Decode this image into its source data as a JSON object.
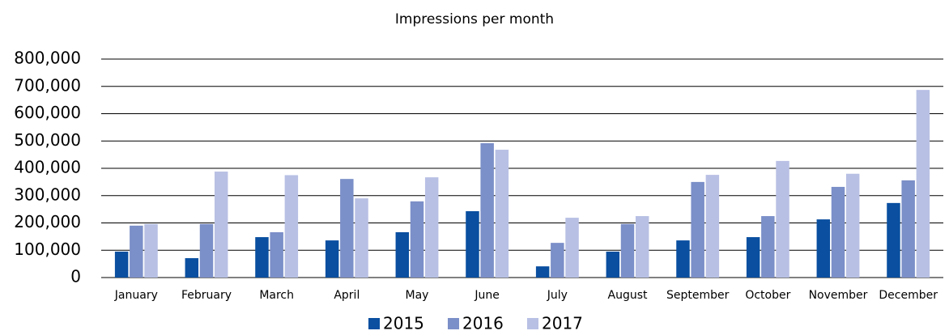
{
  "chart_data": {
    "type": "bar",
    "title": "Impressions per month",
    "categories": [
      "January",
      "February",
      "March",
      "April",
      "May",
      "June",
      "July",
      "August",
      "September",
      "October",
      "November",
      "December"
    ],
    "series": [
      {
        "name": "2015",
        "color": "#0a4fa0",
        "values": [
          95000,
          71000,
          148000,
          136000,
          166000,
          243000,
          41000,
          95000,
          136000,
          148000,
          213000,
          273000
        ]
      },
      {
        "name": "2016",
        "color": "#7b8fc8",
        "values": [
          190000,
          196000,
          166000,
          361000,
          279000,
          492000,
          127000,
          196000,
          350000,
          225000,
          332000,
          356000
        ]
      },
      {
        "name": "2017",
        "color": "#b8c0e4",
        "values": [
          196000,
          388000,
          375000,
          290000,
          367000,
          468000,
          219000,
          225000,
          376000,
          427000,
          380000,
          687000
        ]
      }
    ],
    "ylim": [
      0,
      800000
    ],
    "yticks": [
      0,
      {
        "value": 100000,
        "label": "100,000"
      },
      {
        "value": 200000,
        "label": "200,000"
      },
      {
        "value": 300000,
        "label": "300,000"
      },
      {
        "value": 400000,
        "label": "400,000"
      },
      {
        "value": 500000,
        "label": "500,000"
      },
      {
        "value": 600000,
        "label": "600,000"
      },
      {
        "value": 700000,
        "label": "700,000"
      },
      {
        "value": 800000,
        "label": "800,000"
      }
    ],
    "grid": true
  }
}
